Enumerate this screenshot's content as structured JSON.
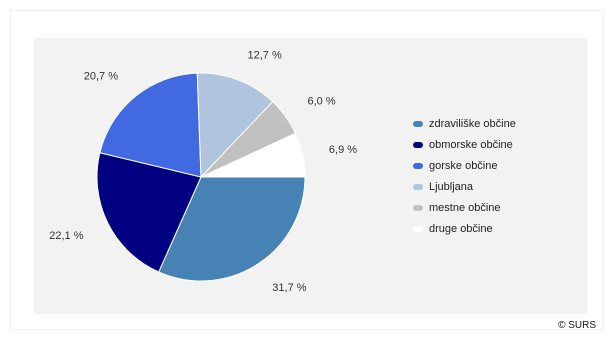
{
  "chart_data": {
    "type": "pie",
    "slices": [
      {
        "name": "zdraviliške občine",
        "value": 31.7,
        "label": "31,7 %",
        "color": "#4682b4"
      },
      {
        "name": "obmorske občine",
        "value": 22.1,
        "label": "22,1 %",
        "color": "#000080"
      },
      {
        "name": "gorske občine",
        "value": 20.7,
        "label": "20,7 %",
        "color": "#4169e1"
      },
      {
        "name": "Ljubljana",
        "value": 12.7,
        "label": "12,7 %",
        "color": "#b0c4de"
      },
      {
        "name": "mestne občine",
        "value": 6.0,
        "label": "6,0 %",
        "color": "#c0c0c0"
      },
      {
        "name": "druge občine",
        "value": 6.9,
        "label": "6,9 %",
        "color": "#ffffff"
      }
    ],
    "legend_placement": "right"
  },
  "source": "© SURS"
}
